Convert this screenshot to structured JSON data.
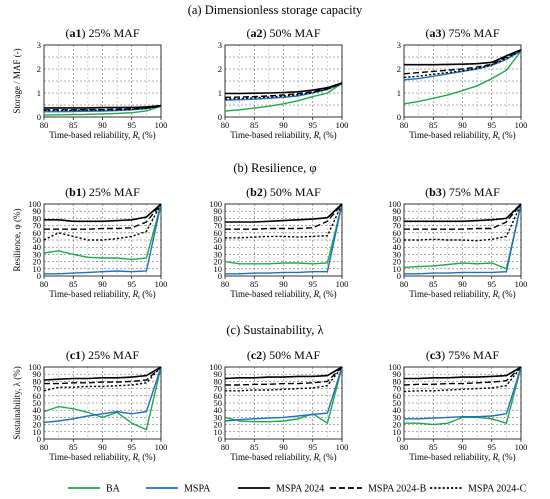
{
  "figure": {
    "sections": [
      {
        "label": "(a) Dimensionless storage capacity",
        "prefix": "a"
      },
      {
        "label": "(b) Resilience, φ",
        "prefix": "b"
      },
      {
        "label": "(c) Sustainability, λ",
        "prefix": "c"
      }
    ],
    "legend": [
      {
        "name": "BA",
        "color": "#22a84a",
        "dash": "solid"
      },
      {
        "name": "MSPA",
        "color": "#1f6fc0",
        "dash": "solid"
      },
      {
        "name": "MSPA 2024",
        "color": "#000000",
        "dash": "solid"
      },
      {
        "name": "MSPA 2024-B",
        "color": "#000000",
        "dash": "dash"
      },
      {
        "name": "MSPA 2024-C",
        "color": "#000000",
        "dash": "dot"
      }
    ]
  },
  "chart_data": [
    {
      "id": "a1",
      "type": "line",
      "title": "(a1) 25% MAF",
      "xlabel": "Time-based reliability, R_t (%)",
      "ylabel": "Storage / MAF (-)",
      "xlim": [
        80,
        100
      ],
      "ylim": [
        0,
        3
      ],
      "xticks": [
        80,
        85,
        90,
        95,
        100
      ],
      "yticks": [
        0,
        0.5,
        1,
        1.5,
        2,
        2.5,
        3
      ],
      "yticklabels": [
        "0",
        "",
        "1",
        "",
        "2",
        "",
        "3"
      ],
      "grid": true,
      "x": [
        80,
        82.5,
        85,
        87.5,
        90,
        92.5,
        95,
        97.5,
        100
      ],
      "series": [
        {
          "name": "BA",
          "values": [
            0.08,
            0.09,
            0.1,
            0.11,
            0.13,
            0.15,
            0.18,
            0.25,
            0.45
          ]
        },
        {
          "name": "MSPA",
          "values": [
            0.22,
            0.22,
            0.23,
            0.24,
            0.25,
            0.27,
            0.3,
            0.35,
            0.45
          ]
        },
        {
          "name": "MSPA 2024",
          "values": [
            0.38,
            0.38,
            0.38,
            0.38,
            0.39,
            0.39,
            0.4,
            0.42,
            0.47
          ]
        },
        {
          "name": "MSPA 2024-B",
          "values": [
            0.3,
            0.3,
            0.3,
            0.31,
            0.31,
            0.32,
            0.34,
            0.38,
            0.45
          ]
        },
        {
          "name": "MSPA 2024-C",
          "values": [
            0.28,
            0.28,
            0.28,
            0.29,
            0.29,
            0.3,
            0.32,
            0.36,
            0.45
          ]
        }
      ]
    },
    {
      "id": "a2",
      "type": "line",
      "title": "(a2) 50% MAF",
      "xlabel": "Time-based reliability, R_t (%)",
      "ylabel": "",
      "xlim": [
        80,
        100
      ],
      "ylim": [
        0,
        3
      ],
      "xticks": [
        80,
        85,
        90,
        95,
        100
      ],
      "yticks": [
        0,
        0.5,
        1,
        1.5,
        2,
        2.5,
        3
      ],
      "yticklabels": [
        "0",
        "",
        "1",
        "",
        "2",
        "",
        "3"
      ],
      "grid": true,
      "x": [
        80,
        82.5,
        85,
        87.5,
        90,
        92.5,
        95,
        97.5,
        100
      ],
      "series": [
        {
          "name": "BA",
          "values": [
            0.25,
            0.3,
            0.37,
            0.45,
            0.55,
            0.68,
            0.85,
            1.0,
            1.4
          ]
        },
        {
          "name": "MSPA",
          "values": [
            0.7,
            0.72,
            0.74,
            0.78,
            0.82,
            0.88,
            1.0,
            1.15,
            1.4
          ]
        },
        {
          "name": "MSPA 2024",
          "values": [
            0.98,
            0.98,
            0.99,
            1.0,
            1.02,
            1.05,
            1.12,
            1.22,
            1.42
          ]
        },
        {
          "name": "MSPA 2024-B",
          "values": [
            0.82,
            0.83,
            0.85,
            0.88,
            0.92,
            0.97,
            1.05,
            1.18,
            1.4
          ]
        },
        {
          "name": "MSPA 2024-C",
          "values": [
            0.75,
            0.77,
            0.8,
            0.83,
            0.87,
            0.93,
            1.02,
            1.16,
            1.4
          ]
        }
      ]
    },
    {
      "id": "a3",
      "type": "line",
      "title": "(a3) 75% MAF",
      "xlabel": "Time-based reliability, R_t (%)",
      "ylabel": "",
      "xlim": [
        80,
        100
      ],
      "ylim": [
        0,
        3
      ],
      "xticks": [
        80,
        85,
        90,
        95,
        100
      ],
      "yticks": [
        0,
        0.5,
        1,
        1.5,
        2,
        2.5,
        3
      ],
      "yticklabels": [
        "0",
        "",
        "1",
        "",
        "2",
        "",
        "3"
      ],
      "grid": true,
      "x": [
        80,
        82.5,
        85,
        87.5,
        90,
        92.5,
        95,
        97.5,
        100
      ],
      "series": [
        {
          "name": "BA",
          "values": [
            0.55,
            0.65,
            0.78,
            0.92,
            1.1,
            1.3,
            1.6,
            1.95,
            2.75
          ]
        },
        {
          "name": "MSPA",
          "values": [
            1.55,
            1.6,
            1.7,
            1.8,
            1.9,
            2.0,
            2.15,
            2.4,
            2.75
          ]
        },
        {
          "name": "MSPA 2024",
          "values": [
            2.18,
            2.18,
            2.18,
            2.19,
            2.2,
            2.22,
            2.28,
            2.55,
            2.8
          ]
        },
        {
          "name": "MSPA 2024-B",
          "values": [
            1.8,
            1.85,
            1.9,
            1.95,
            2.0,
            2.08,
            2.2,
            2.5,
            2.78
          ]
        },
        {
          "name": "MSPA 2024-C",
          "values": [
            1.65,
            1.7,
            1.78,
            1.85,
            1.93,
            2.02,
            2.18,
            2.45,
            2.78
          ]
        }
      ]
    },
    {
      "id": "b1",
      "type": "line",
      "title": "(b1) 25% MAF",
      "xlabel": "Time-based reliability, R_t (%)",
      "ylabel": "Resilience, φ (%)",
      "xlim": [
        80,
        100
      ],
      "ylim": [
        0,
        100
      ],
      "xticks": [
        80,
        85,
        90,
        95,
        100
      ],
      "yticks": [
        0,
        10,
        20,
        30,
        40,
        50,
        60,
        70,
        80,
        90,
        100
      ],
      "yticklabels": [
        "0",
        "10",
        "20",
        "30",
        "40",
        "50",
        "60",
        "70",
        "80",
        "90",
        "100"
      ],
      "grid": true,
      "x": [
        80,
        82.5,
        85,
        87.5,
        90,
        92.5,
        95,
        97.5,
        100
      ],
      "series": [
        {
          "name": "BA",
          "values": [
            32,
            35,
            30,
            26,
            25,
            25,
            23,
            25,
            100
          ]
        },
        {
          "name": "MSPA",
          "values": [
            3,
            3,
            4,
            5,
            6,
            7,
            6,
            7,
            100
          ]
        },
        {
          "name": "MSPA 2024",
          "values": [
            78,
            78,
            76,
            76,
            76,
            77,
            78,
            82,
            100
          ]
        },
        {
          "name": "MSPA 2024-B",
          "values": [
            65,
            65,
            65,
            65,
            66,
            66,
            67,
            75,
            100
          ]
        },
        {
          "name": "MSPA 2024-C",
          "values": [
            50,
            60,
            55,
            50,
            50,
            52,
            55,
            62,
            100
          ]
        }
      ]
    },
    {
      "id": "b2",
      "type": "line",
      "title": "(b2) 50% MAF",
      "xlabel": "Time-based reliability, R_t (%)",
      "ylabel": "",
      "xlim": [
        80,
        100
      ],
      "ylim": [
        0,
        100
      ],
      "xticks": [
        80,
        85,
        90,
        95,
        100
      ],
      "yticks": [
        0,
        10,
        20,
        30,
        40,
        50,
        60,
        70,
        80,
        90,
        100
      ],
      "yticklabels": [
        "0",
        "10",
        "20",
        "30",
        "40",
        "50",
        "60",
        "70",
        "80",
        "90",
        "100"
      ],
      "grid": true,
      "x": [
        80,
        82.5,
        85,
        87.5,
        90,
        92.5,
        95,
        97.5,
        100
      ],
      "series": [
        {
          "name": "BA",
          "values": [
            20,
            17,
            17,
            17,
            18,
            18,
            17,
            18,
            100
          ]
        },
        {
          "name": "MSPA",
          "values": [
            3,
            3,
            4,
            4,
            5,
            5,
            6,
            6,
            100
          ]
        },
        {
          "name": "MSPA 2024",
          "values": [
            75,
            75,
            75,
            76,
            77,
            78,
            79,
            81,
            100
          ]
        },
        {
          "name": "MSPA 2024-B",
          "values": [
            65,
            65,
            65,
            66,
            66,
            66,
            67,
            76,
            100
          ]
        },
        {
          "name": "MSPA 2024-C",
          "values": [
            53,
            53,
            54,
            55,
            55,
            54,
            55,
            56,
            100
          ]
        }
      ]
    },
    {
      "id": "b3",
      "type": "line",
      "title": "(b3) 75% MAF",
      "xlabel": "Time-based reliability, R_t (%)",
      "ylabel": "",
      "xlim": [
        80,
        100
      ],
      "ylim": [
        0,
        100
      ],
      "xticks": [
        80,
        85,
        90,
        95,
        100
      ],
      "yticks": [
        0,
        10,
        20,
        30,
        40,
        50,
        60,
        70,
        80,
        90,
        100
      ],
      "yticklabels": [
        "0",
        "10",
        "20",
        "30",
        "40",
        "50",
        "60",
        "70",
        "80",
        "90",
        "100"
      ],
      "grid": true,
      "x": [
        80,
        82.5,
        85,
        87.5,
        90,
        92.5,
        95,
        97.5,
        100
      ],
      "series": [
        {
          "name": "BA",
          "values": [
            12,
            13,
            14,
            16,
            18,
            17,
            18,
            10,
            100
          ]
        },
        {
          "name": "MSPA",
          "values": [
            3,
            3,
            4,
            4,
            5,
            5,
            5,
            6,
            100
          ]
        },
        {
          "name": "MSPA 2024",
          "values": [
            76,
            76,
            76,
            76,
            76,
            77,
            78,
            80,
            100
          ]
        },
        {
          "name": "MSPA 2024-B",
          "values": [
            65,
            65,
            65,
            65,
            65,
            66,
            66,
            75,
            100
          ]
        },
        {
          "name": "MSPA 2024-C",
          "values": [
            50,
            50,
            51,
            50,
            50,
            49,
            51,
            55,
            100
          ]
        }
      ]
    },
    {
      "id": "c1",
      "type": "line",
      "title": "(c1) 25% MAF",
      "xlabel": "Time-based reliability, R_t (%)",
      "ylabel": "Sustainability, λ (%)",
      "xlim": [
        80,
        100
      ],
      "ylim": [
        0,
        100
      ],
      "xticks": [
        80,
        85,
        90,
        95,
        100
      ],
      "yticks": [
        0,
        10,
        20,
        30,
        40,
        50,
        60,
        70,
        80,
        90,
        100
      ],
      "yticklabels": [
        "0",
        "10",
        "20",
        "30",
        "40",
        "50",
        "60",
        "70",
        "80",
        "90",
        "100"
      ],
      "grid": true,
      "x": [
        80,
        82.5,
        85,
        87.5,
        90,
        92.5,
        95,
        97.5,
        100
      ],
      "series": [
        {
          "name": "BA",
          "values": [
            38,
            45,
            42,
            37,
            30,
            37,
            22,
            13,
            100
          ]
        },
        {
          "name": "MSPA",
          "values": [
            23,
            25,
            28,
            32,
            35,
            38,
            35,
            38,
            100
          ]
        },
        {
          "name": "MSPA 2024",
          "values": [
            82,
            83,
            84,
            84,
            85,
            85,
            86,
            88,
            100
          ]
        },
        {
          "name": "MSPA 2024-B",
          "values": [
            77,
            77,
            78,
            78,
            79,
            79,
            80,
            82,
            100
          ]
        },
        {
          "name": "MSPA 2024-C",
          "values": [
            67,
            72,
            72,
            73,
            73,
            74,
            75,
            78,
            100
          ]
        }
      ]
    },
    {
      "id": "c2",
      "type": "line",
      "title": "(c2) 50% MAF",
      "xlabel": "Time-based reliability, R_t (%)",
      "ylabel": "",
      "xlim": [
        80,
        100
      ],
      "ylim": [
        0,
        100
      ],
      "xticks": [
        80,
        85,
        90,
        95,
        100
      ],
      "yticks": [
        0,
        10,
        20,
        30,
        40,
        50,
        60,
        70,
        80,
        90,
        100
      ],
      "yticklabels": [
        "0",
        "10",
        "20",
        "30",
        "40",
        "50",
        "60",
        "70",
        "80",
        "90",
        "100"
      ],
      "grid": true,
      "x": [
        80,
        82.5,
        85,
        87.5,
        90,
        92.5,
        95,
        97.5,
        100
      ],
      "series": [
        {
          "name": "BA",
          "values": [
            30,
            25,
            24,
            24,
            25,
            28,
            35,
            22,
            100
          ]
        },
        {
          "name": "MSPA",
          "values": [
            25,
            27,
            28,
            29,
            30,
            32,
            34,
            36,
            100
          ]
        },
        {
          "name": "MSPA 2024",
          "values": [
            84,
            85,
            85,
            86,
            86,
            87,
            87,
            88,
            100
          ]
        },
        {
          "name": "MSPA 2024-B",
          "values": [
            75,
            75,
            76,
            76,
            77,
            77,
            78,
            80,
            100
          ]
        },
        {
          "name": "MSPA 2024-C",
          "values": [
            67,
            67,
            68,
            68,
            69,
            70,
            71,
            74,
            100
          ]
        }
      ]
    },
    {
      "id": "c3",
      "type": "line",
      "title": "(c3) 75% MAF",
      "xlabel": "Time-based reliability, R_t (%)",
      "ylabel": "",
      "xlim": [
        80,
        100
      ],
      "ylim": [
        0,
        100
      ],
      "xticks": [
        80,
        85,
        90,
        95,
        100
      ],
      "yticks": [
        0,
        10,
        20,
        30,
        40,
        50,
        60,
        70,
        80,
        90,
        100
      ],
      "yticklabels": [
        "0",
        "10",
        "20",
        "30",
        "40",
        "50",
        "60",
        "70",
        "80",
        "90",
        "100"
      ],
      "grid": true,
      "x": [
        80,
        82.5,
        85,
        87.5,
        90,
        92.5,
        95,
        97.5,
        100
      ],
      "series": [
        {
          "name": "BA",
          "values": [
            22,
            22,
            20,
            22,
            30,
            30,
            28,
            22,
            100
          ]
        },
        {
          "name": "MSPA",
          "values": [
            28,
            28,
            29,
            30,
            31,
            31,
            32,
            35,
            100
          ]
        },
        {
          "name": "MSPA 2024",
          "values": [
            84,
            84,
            85,
            85,
            86,
            86,
            87,
            88,
            100
          ]
        },
        {
          "name": "MSPA 2024-B",
          "values": [
            75,
            76,
            76,
            77,
            77,
            78,
            79,
            81,
            100
          ]
        },
        {
          "name": "MSPA 2024-C",
          "values": [
            66,
            67,
            67,
            68,
            69,
            70,
            71,
            74,
            100
          ]
        }
      ]
    }
  ]
}
